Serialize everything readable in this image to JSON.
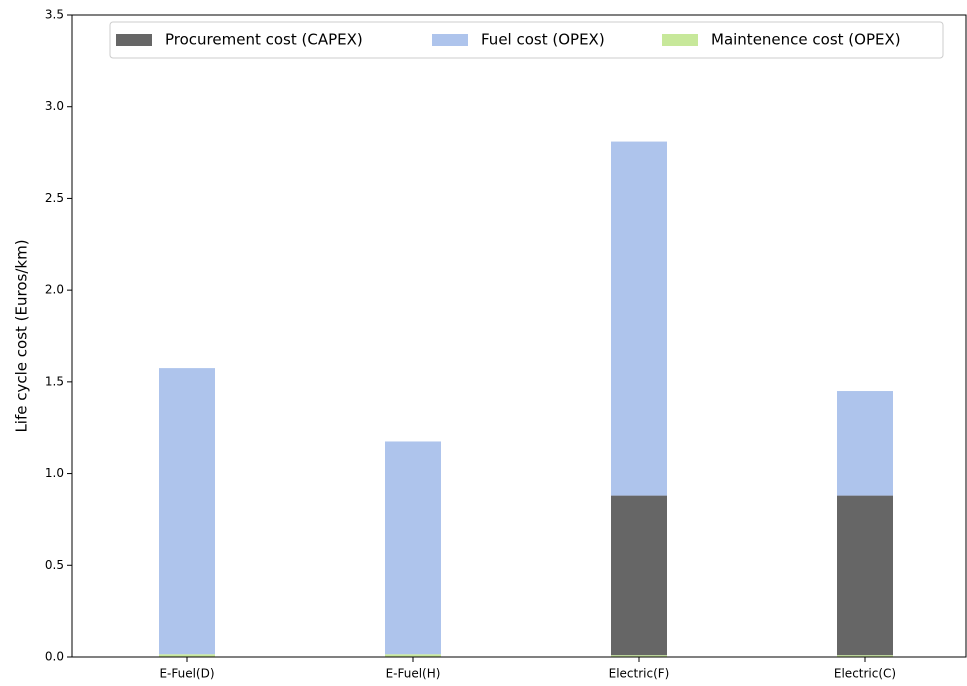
{
  "chart_data": {
    "type": "bar",
    "stacked": true,
    "ylabel": "Life cycle cost (Euros/km)",
    "categories": [
      "E-Fuel(D)",
      "E-Fuel(H)",
      "Electric(F)",
      "Electric(C)"
    ],
    "series": [
      {
        "name": "Procurement cost (CAPEX)",
        "color": "#666666",
        "values": [
          0,
          0,
          0.87,
          0.87
        ]
      },
      {
        "name": "Fuel cost (OPEX)",
        "color": "#aec4ec",
        "values": [
          1.56,
          1.16,
          1.93,
          0.57
        ]
      },
      {
        "name": "Maintenence cost (OPEX)",
        "color": "#c7e89a",
        "values": [
          0.015,
          0.015,
          0.01,
          0.01
        ]
      }
    ],
    "ylim": [
      0,
      3.5
    ],
    "yticks": [
      {
        "value": 0,
        "label": "0.0"
      },
      0.5,
      {
        "value": 1,
        "label": "1.0"
      },
      1.5,
      {
        "value": 2,
        "label": "2.0"
      },
      2.5,
      {
        "value": 3,
        "label": "3.0"
      },
      3.5
    ],
    "legend": "top"
  }
}
